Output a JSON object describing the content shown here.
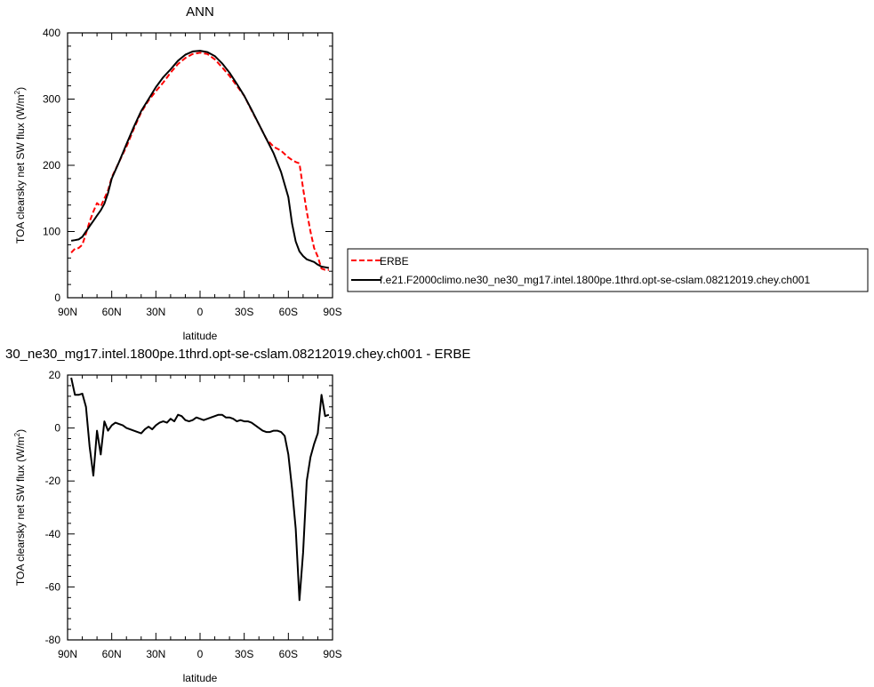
{
  "chart_data": [
    {
      "type": "line",
      "title": "ANN",
      "xlabel": "latitude",
      "ylabel": "TOA clearsky net SW flux (W/m",
      "ylabel_sup": "2",
      "ylabel_end": ")",
      "xlim": [
        90,
        -90
      ],
      "ylim": [
        0,
        400
      ],
      "x_ticks": [
        90,
        60,
        30,
        0,
        -30,
        -60,
        -90
      ],
      "x_tick_labels": [
        "90N",
        "60N",
        "30N",
        "0",
        "30S",
        "60S",
        "90S"
      ],
      "y_ticks": [
        0,
        100,
        200,
        300,
        400
      ],
      "y_tick_labels": [
        "0",
        "100",
        "200",
        "300",
        "400"
      ],
      "legend_position": "right",
      "series": [
        {
          "name": "ERBE",
          "color": "#ff0000",
          "dash": "dashed",
          "x": [
            87.5,
            85,
            82.5,
            80,
            77.5,
            75,
            72.5,
            70,
            67.5,
            65,
            62.5,
            60,
            55,
            50,
            45,
            40,
            35,
            30,
            25,
            20,
            15,
            10,
            5,
            0,
            -5,
            -10,
            -15,
            -20,
            -25,
            -30,
            -35,
            -40,
            -45,
            -50,
            -55,
            -60,
            -62.5,
            -65,
            -67.5,
            -70,
            -72.5,
            -75,
            -77.5,
            -80,
            -82.5,
            -85,
            -87.5
          ],
          "y": [
            68,
            74,
            75,
            80,
            97,
            115,
            130,
            143,
            138,
            150,
            162,
            182,
            205,
            228,
            255,
            280,
            298,
            312,
            325,
            340,
            353,
            362,
            368,
            370,
            368,
            360,
            348,
            335,
            320,
            305,
            283,
            262,
            240,
            228,
            222,
            212,
            208,
            205,
            203,
            165,
            130,
            100,
            75,
            62,
            44,
            42,
            42
          ]
        },
        {
          "name": "f.e21.F2000climo.ne30_ne30_mg17.intel.1800pe.1thrd.opt-se-cslam.08212019.chey.ch001",
          "color": "#000000",
          "dash": "solid",
          "x": [
            87.5,
            85,
            82.5,
            80,
            77.5,
            75,
            72.5,
            70,
            67.5,
            65,
            62.5,
            60,
            55,
            50,
            45,
            40,
            35,
            30,
            25,
            20,
            15,
            10,
            5,
            0,
            -5,
            -10,
            -15,
            -20,
            -25,
            -30,
            -35,
            -40,
            -45,
            -50,
            -55,
            -60,
            -62.5,
            -65,
            -67.5,
            -70,
            -72.5,
            -75,
            -77.5,
            -80,
            -82.5,
            -85,
            -87.5
          ],
          "y": [
            86,
            87,
            88,
            92,
            100,
            108,
            116,
            124,
            132,
            142,
            158,
            180,
            205,
            232,
            258,
            282,
            300,
            318,
            333,
            345,
            358,
            367,
            372,
            373,
            371,
            365,
            354,
            340,
            323,
            305,
            284,
            262,
            240,
            218,
            190,
            152,
            112,
            85,
            70,
            63,
            58,
            56,
            54,
            50,
            47,
            46,
            45
          ]
        }
      ]
    },
    {
      "type": "line",
      "title": "30_ne30_mg17.intel.1800pe.1thrd.opt-se-cslam.08212019.chey.ch001 - ERBE",
      "xlabel": "latitude",
      "ylabel": "TOA clearsky net SW flux (W/m",
      "ylabel_sup": "2",
      "ylabel_end": ")",
      "xlim": [
        90,
        -90
      ],
      "ylim": [
        -80,
        20
      ],
      "x_ticks": [
        90,
        60,
        30,
        0,
        -30,
        -60,
        -90
      ],
      "x_tick_labels": [
        "90N",
        "60N",
        "30N",
        "0",
        "30S",
        "60S",
        "90S"
      ],
      "y_ticks": [
        -80,
        -60,
        -40,
        -20,
        0,
        20
      ],
      "y_tick_labels": [
        "-80",
        "-60",
        "-40",
        "-20",
        "0",
        "20"
      ],
      "series": [
        {
          "name": "",
          "color": "#000000",
          "dash": "solid",
          "x": [
            87.5,
            85,
            82.5,
            80,
            77.5,
            75,
            72.5,
            70,
            67.5,
            65,
            62.5,
            60,
            57.5,
            55,
            52.5,
            50,
            47.5,
            45,
            42.5,
            40,
            37.5,
            35,
            32.5,
            30,
            27.5,
            25,
            22.5,
            20,
            17.5,
            15,
            12.5,
            10,
            7.5,
            5,
            2.5,
            0,
            -2.5,
            -5,
            -7.5,
            -10,
            -12.5,
            -15,
            -17.5,
            -20,
            -22.5,
            -25,
            -27.5,
            -30,
            -32.5,
            -35,
            -37.5,
            -40,
            -42.5,
            -45,
            -47.5,
            -50,
            -52.5,
            -55,
            -57.5,
            -60,
            -62.5,
            -65,
            -67.5,
            -70,
            -72.5,
            -75,
            -77.5,
            -80,
            -82.5,
            -85,
            -87.5
          ],
          "y": [
            19,
            12.5,
            12.5,
            13,
            8,
            -7,
            -18,
            -1,
            -10,
            2.5,
            -1,
            1,
            2,
            1.5,
            1,
            0,
            -0.5,
            -1,
            -1.5,
            -2,
            -0.5,
            0.5,
            -0.5,
            1,
            2,
            2.5,
            2,
            3.5,
            2.5,
            5,
            4.5,
            3,
            2.5,
            3,
            4,
            3.5,
            3,
            3.5,
            4,
            4.5,
            5,
            5,
            4,
            4,
            3.5,
            2.5,
            3,
            2.5,
            2.5,
            2,
            1,
            0,
            -1,
            -1.5,
            -1.5,
            -1,
            -1,
            -1.5,
            -3,
            -10,
            -23,
            -38,
            -65,
            -47,
            -20,
            -11,
            -6,
            -2,
            12.5,
            4.5,
            5
          ]
        }
      ]
    }
  ]
}
